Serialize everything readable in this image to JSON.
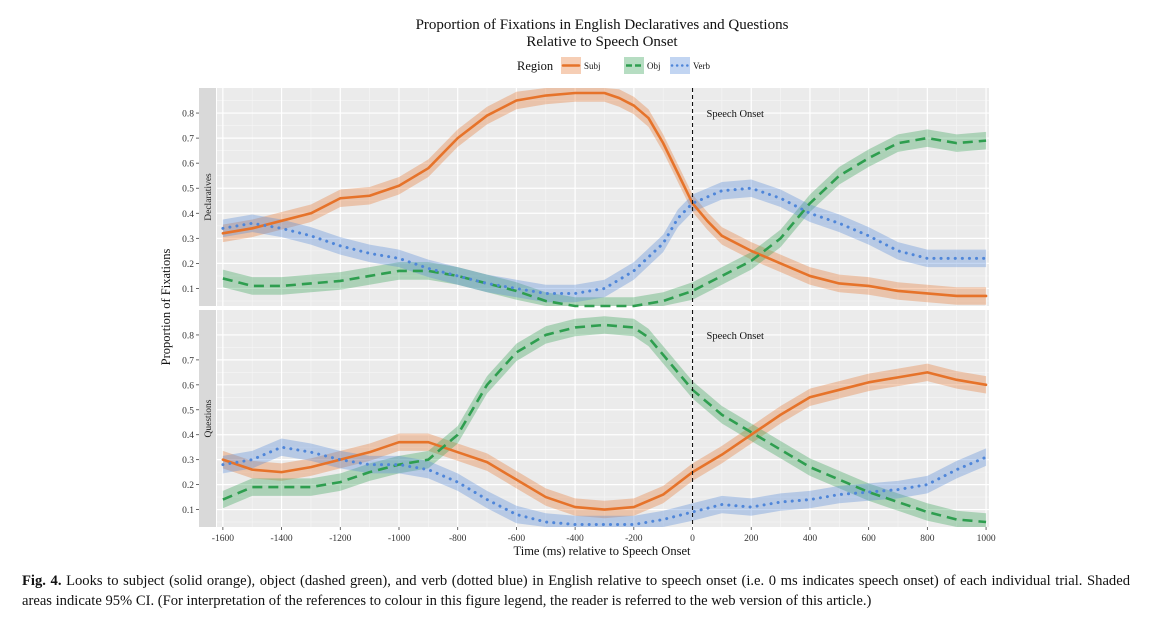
{
  "chart_data": {
    "type": "line",
    "title_line1": "Proportion of Fixations in English Declaratives and Questions",
    "title_line2": "Relative to Speech Onset",
    "xlabel": "Time (ms) relative to Speech Onset",
    "ylabel": "Proportion of Fixations",
    "legend": {
      "title": "Region",
      "placement": "top",
      "entries": [
        {
          "label": "Subj",
          "color": "#e6732a",
          "style": "solid"
        },
        {
          "label": "Obj",
          "color": "#2e9e4f",
          "style": "dashed"
        },
        {
          "label": "Verb",
          "color": "#4f86d9",
          "style": "dotted"
        }
      ]
    },
    "xlim": [
      -1620,
      1010
    ],
    "ylim": [
      0.03,
      0.9
    ],
    "x_ticks": [
      -1600,
      -1400,
      -1200,
      -1000,
      -800,
      -600,
      -400,
      -200,
      0,
      200,
      400,
      600,
      800,
      1000
    ],
    "y_ticks": [
      0.1,
      0.2,
      0.3,
      0.4,
      0.5,
      0.6,
      0.7,
      0.8
    ],
    "vline": {
      "x": 0,
      "label": "Speech Onset"
    },
    "ci_halfwidth": 0.035,
    "panels": [
      {
        "strip": "Declaratives",
        "series": [
          {
            "name": "Subj",
            "points": [
              [
                -1600,
                0.32
              ],
              [
                -1500,
                0.34
              ],
              [
                -1400,
                0.37
              ],
              [
                -1300,
                0.4
              ],
              [
                -1200,
                0.46
              ],
              [
                -1100,
                0.47
              ],
              [
                -1000,
                0.51
              ],
              [
                -900,
                0.58
              ],
              [
                -800,
                0.7
              ],
              [
                -700,
                0.79
              ],
              [
                -600,
                0.85
              ],
              [
                -500,
                0.87
              ],
              [
                -400,
                0.88
              ],
              [
                -300,
                0.88
              ],
              [
                -250,
                0.86
              ],
              [
                -200,
                0.83
              ],
              [
                -150,
                0.78
              ],
              [
                -100,
                0.68
              ],
              [
                -50,
                0.56
              ],
              [
                0,
                0.44
              ],
              [
                50,
                0.37
              ],
              [
                100,
                0.31
              ],
              [
                200,
                0.25
              ],
              [
                300,
                0.2
              ],
              [
                400,
                0.15
              ],
              [
                500,
                0.12
              ],
              [
                600,
                0.11
              ],
              [
                700,
                0.09
              ],
              [
                800,
                0.08
              ],
              [
                900,
                0.07
              ],
              [
                1000,
                0.07
              ]
            ]
          },
          {
            "name": "Obj",
            "points": [
              [
                -1600,
                0.14
              ],
              [
                -1500,
                0.11
              ],
              [
                -1400,
                0.11
              ],
              [
                -1300,
                0.12
              ],
              [
                -1200,
                0.13
              ],
              [
                -1100,
                0.15
              ],
              [
                -1000,
                0.17
              ],
              [
                -900,
                0.17
              ],
              [
                -800,
                0.15
              ],
              [
                -700,
                0.12
              ],
              [
                -600,
                0.09
              ],
              [
                -500,
                0.05
              ],
              [
                -400,
                0.03
              ],
              [
                -300,
                0.03
              ],
              [
                -200,
                0.03
              ],
              [
                -100,
                0.05
              ],
              [
                0,
                0.09
              ],
              [
                100,
                0.15
              ],
              [
                200,
                0.21
              ],
              [
                300,
                0.3
              ],
              [
                400,
                0.44
              ],
              [
                500,
                0.55
              ],
              [
                600,
                0.62
              ],
              [
                700,
                0.68
              ],
              [
                800,
                0.7
              ],
              [
                900,
                0.68
              ],
              [
                1000,
                0.69
              ]
            ]
          },
          {
            "name": "Verb",
            "points": [
              [
                -1600,
                0.34
              ],
              [
                -1500,
                0.36
              ],
              [
                -1400,
                0.34
              ],
              [
                -1300,
                0.31
              ],
              [
                -1200,
                0.27
              ],
              [
                -1100,
                0.24
              ],
              [
                -1000,
                0.22
              ],
              [
                -900,
                0.18
              ],
              [
                -800,
                0.15
              ],
              [
                -700,
                0.12
              ],
              [
                -600,
                0.1
              ],
              [
                -500,
                0.08
              ],
              [
                -400,
                0.08
              ],
              [
                -300,
                0.1
              ],
              [
                -200,
                0.17
              ],
              [
                -100,
                0.28
              ],
              [
                -50,
                0.38
              ],
              [
                0,
                0.44
              ],
              [
                100,
                0.49
              ],
              [
                200,
                0.5
              ],
              [
                300,
                0.46
              ],
              [
                400,
                0.4
              ],
              [
                500,
                0.36
              ],
              [
                600,
                0.31
              ],
              [
                700,
                0.25
              ],
              [
                800,
                0.22
              ],
              [
                900,
                0.22
              ],
              [
                1000,
                0.22
              ]
            ]
          }
        ]
      },
      {
        "strip": "Questions",
        "series": [
          {
            "name": "Subj",
            "points": [
              [
                -1600,
                0.3
              ],
              [
                -1500,
                0.26
              ],
              [
                -1400,
                0.25
              ],
              [
                -1300,
                0.27
              ],
              [
                -1200,
                0.3
              ],
              [
                -1100,
                0.33
              ],
              [
                -1000,
                0.37
              ],
              [
                -900,
                0.37
              ],
              [
                -800,
                0.33
              ],
              [
                -700,
                0.29
              ],
              [
                -600,
                0.22
              ],
              [
                -500,
                0.15
              ],
              [
                -400,
                0.11
              ],
              [
                -300,
                0.1
              ],
              [
                -200,
                0.11
              ],
              [
                -100,
                0.16
              ],
              [
                0,
                0.25
              ],
              [
                100,
                0.32
              ],
              [
                200,
                0.4
              ],
              [
                300,
                0.48
              ],
              [
                400,
                0.55
              ],
              [
                500,
                0.58
              ],
              [
                600,
                0.61
              ],
              [
                700,
                0.63
              ],
              [
                800,
                0.65
              ],
              [
                900,
                0.62
              ],
              [
                1000,
                0.6
              ]
            ]
          },
          {
            "name": "Obj",
            "points": [
              [
                -1600,
                0.14
              ],
              [
                -1500,
                0.19
              ],
              [
                -1400,
                0.19
              ],
              [
                -1300,
                0.19
              ],
              [
                -1200,
                0.21
              ],
              [
                -1100,
                0.25
              ],
              [
                -1000,
                0.28
              ],
              [
                -900,
                0.3
              ],
              [
                -800,
                0.4
              ],
              [
                -700,
                0.6
              ],
              [
                -600,
                0.73
              ],
              [
                -500,
                0.8
              ],
              [
                -400,
                0.83
              ],
              [
                -300,
                0.84
              ],
              [
                -200,
                0.83
              ],
              [
                -150,
                0.79
              ],
              [
                -100,
                0.72
              ],
              [
                -50,
                0.65
              ],
              [
                0,
                0.58
              ],
              [
                100,
                0.48
              ],
              [
                200,
                0.41
              ],
              [
                300,
                0.34
              ],
              [
                400,
                0.27
              ],
              [
                500,
                0.22
              ],
              [
                600,
                0.17
              ],
              [
                700,
                0.13
              ],
              [
                800,
                0.09
              ],
              [
                900,
                0.06
              ],
              [
                1000,
                0.05
              ]
            ]
          },
          {
            "name": "Verb",
            "points": [
              [
                -1600,
                0.28
              ],
              [
                -1500,
                0.3
              ],
              [
                -1400,
                0.35
              ],
              [
                -1300,
                0.33
              ],
              [
                -1200,
                0.3
              ],
              [
                -1100,
                0.28
              ],
              [
                -1000,
                0.28
              ],
              [
                -900,
                0.26
              ],
              [
                -800,
                0.21
              ],
              [
                -700,
                0.14
              ],
              [
                -600,
                0.08
              ],
              [
                -500,
                0.05
              ],
              [
                -400,
                0.04
              ],
              [
                -300,
                0.04
              ],
              [
                -200,
                0.04
              ],
              [
                -100,
                0.06
              ],
              [
                0,
                0.09
              ],
              [
                100,
                0.12
              ],
              [
                200,
                0.11
              ],
              [
                300,
                0.13
              ],
              [
                400,
                0.14
              ],
              [
                500,
                0.16
              ],
              [
                600,
                0.17
              ],
              [
                700,
                0.18
              ],
              [
                800,
                0.2
              ],
              [
                900,
                0.26
              ],
              [
                1000,
                0.31
              ]
            ]
          }
        ]
      }
    ]
  },
  "caption": {
    "fig_label": "Fig. 4.",
    "text": "Looks to subject (solid orange), object (dashed green), and verb (dotted blue) in English relative to speech onset (i.e. 0 ms indicates speech onset) of each individual trial. Shaded areas indicate 95% CI. (For interpretation of the references to colour in this figure legend, the reader is referred to the web version of this article.)"
  }
}
